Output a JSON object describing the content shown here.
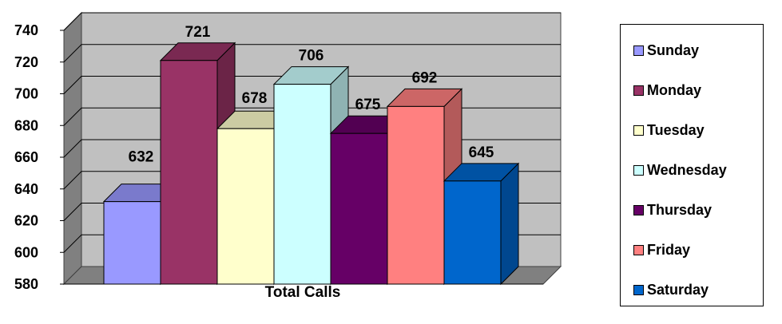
{
  "chart_data": {
    "type": "bar",
    "title": "",
    "xlabel": "Total Calls",
    "ylabel": "",
    "categories": [
      "Total Calls"
    ],
    "series": [
      {
        "name": "Sunday",
        "values": [
          632
        ],
        "color": "#9999ff"
      },
      {
        "name": "Monday",
        "values": [
          721
        ],
        "color": "#993366"
      },
      {
        "name": "Tuesday",
        "values": [
          678
        ],
        "color": "#ffffcc"
      },
      {
        "name": "Wednesday",
        "values": [
          706
        ],
        "color": "#ccffff"
      },
      {
        "name": "Thursday",
        "values": [
          675
        ],
        "color": "#660066"
      },
      {
        "name": "Friday",
        "values": [
          692
        ],
        "color": "#ff8080"
      },
      {
        "name": "Saturday",
        "values": [
          645
        ],
        "color": "#0066cc"
      }
    ],
    "ylim": [
      580,
      740
    ],
    "yticks": [
      580,
      600,
      620,
      640,
      660,
      680,
      700,
      720,
      740
    ],
    "grid": true,
    "legend_position": "right",
    "style": "3d-clustered-column"
  }
}
